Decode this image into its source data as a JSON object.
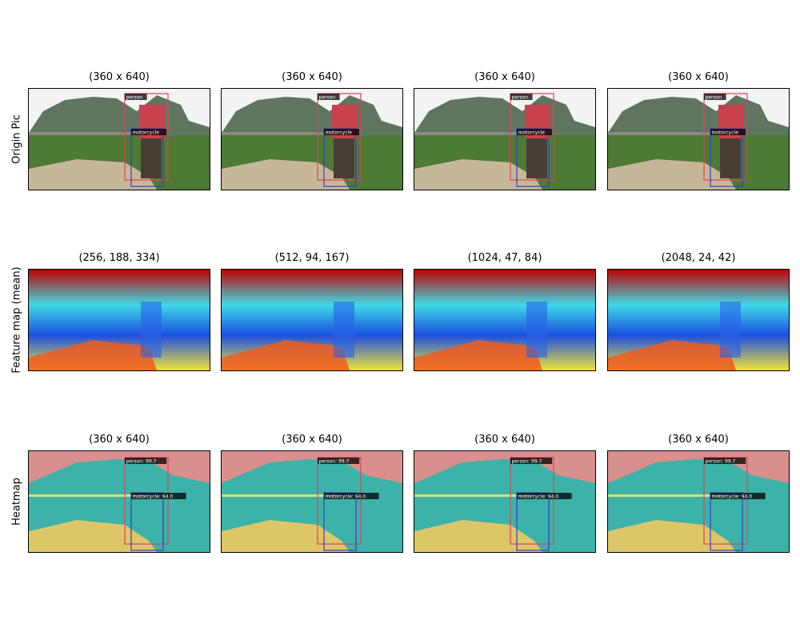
{
  "row_labels": [
    "Origin Pic",
    "Feature map (mean)",
    "Heatmap"
  ],
  "rows": [
    {
      "kind": "photo",
      "titles": [
        "(360 x 640)",
        "(360 x 640)",
        "(360 x 640)",
        "(360 x 640)"
      ],
      "detections": [
        {
          "label": "person",
          "color": "#e0405a"
        },
        {
          "label": "motorcycle",
          "color": "#3a3acc"
        }
      ]
    },
    {
      "kind": "feature",
      "titles": [
        "(256, 188, 334)",
        "(512, 94, 167)",
        "(1024, 47, 84)",
        "(2048, 24, 42)"
      ]
    },
    {
      "kind": "heatmap",
      "titles": [
        "(360 x 640)",
        "(360 x 640)",
        "(360 x 640)",
        "(360 x 640)"
      ],
      "detections": [
        {
          "label": "person: 99.7",
          "color": "#e0405a"
        },
        {
          "label": "motorcycle: 94.0",
          "color": "#3a3acc"
        }
      ]
    }
  ],
  "colors": {
    "sky": "#f2f4f2",
    "mountain": "#5f7560",
    "grass": "#4d7a35",
    "road": "#c7b79a",
    "shirt": "#c8414c",
    "jet_red": "#c00000",
    "jet_cyan": "#3fd9e6",
    "jet_yellow": "#f2e33b",
    "heat_pink": "#d98f8c",
    "heat_teal": "#3bb3a8"
  }
}
